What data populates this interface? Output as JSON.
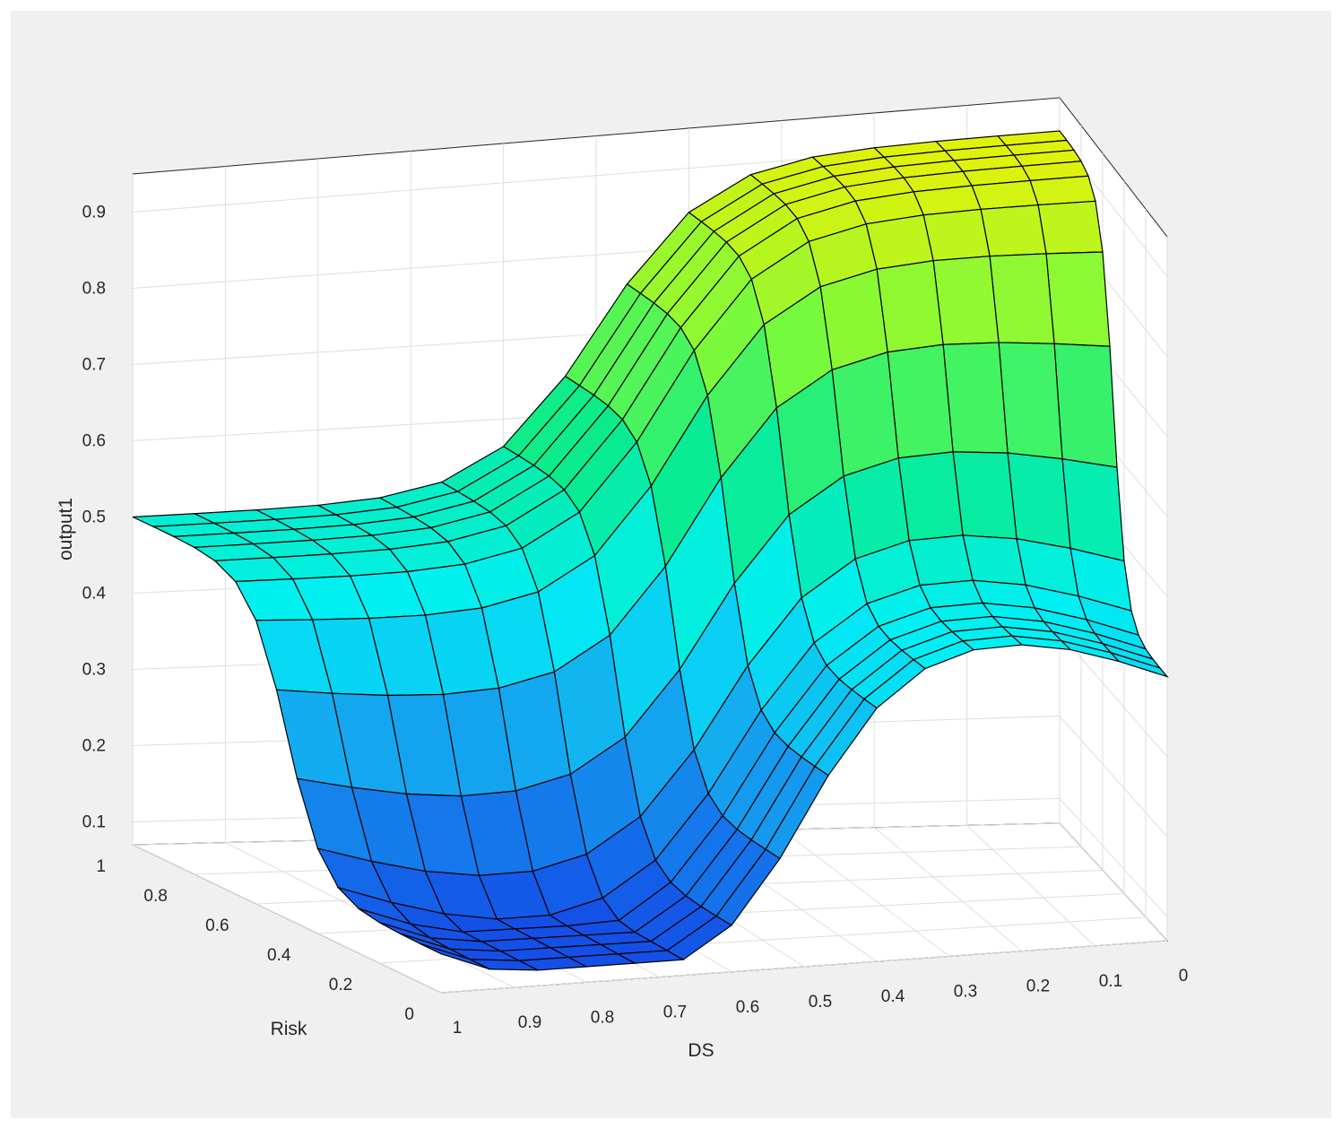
{
  "chart_data": {
    "type": "surface",
    "title": "",
    "xlabel": "DS",
    "ylabel": "Risk",
    "zlabel": "output1",
    "xlim": [
      0,
      1
    ],
    "ylim": [
      0,
      1
    ],
    "zlim": [
      0.07,
      0.95
    ],
    "grid": true,
    "colormap": "parula",
    "x_ticks": [
      "1",
      "0.9",
      "0.8",
      "0.7",
      "0.6",
      "0.5",
      "0.4",
      "0.3",
      "0.2",
      "0.1",
      "0"
    ],
    "y_ticks": [
      "0",
      "0.2",
      "0.4",
      "0.6",
      "0.8",
      "1"
    ],
    "z_ticks": [
      "0.1",
      "0.2",
      "0.3",
      "0.4",
      "0.5",
      "0.6",
      "0.7",
      "0.8",
      "0.9"
    ],
    "grid_DS": [
      0,
      0.067,
      0.133,
      0.2,
      0.267,
      0.333,
      0.4,
      0.467,
      0.533,
      0.6,
      0.667,
      0.733,
      0.8,
      0.867,
      0.933,
      1
    ],
    "grid_Risk": [
      0,
      0.067,
      0.133,
      0.2,
      0.267,
      0.333,
      0.4,
      0.467,
      0.533,
      0.6,
      0.667,
      0.733,
      0.8,
      0.867,
      0.933,
      1
    ],
    "z_corners": {
      "DS0_Risk0": 0.4,
      "DS1_Risk0": 0.12,
      "DS1_Risk1": 0.5,
      "DS0_Risk1": 0.91
    }
  }
}
